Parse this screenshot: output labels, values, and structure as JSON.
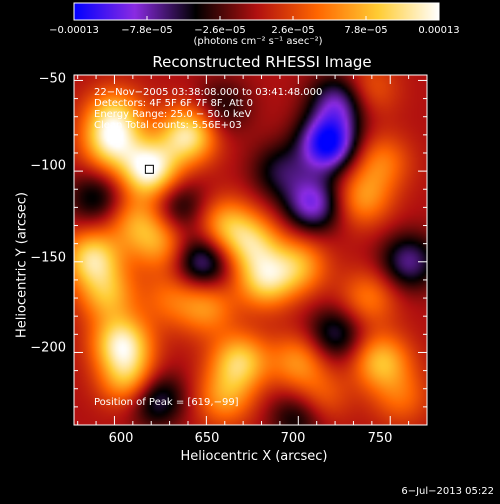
{
  "chart_data": {
    "type": "heatmap",
    "title": "Reconstructed RHESSI Image",
    "xlabel": "Heliocentric X (arcsec)",
    "ylabel": "Heliocentric Y (arcsec)",
    "xlim": [
      578,
      770
    ],
    "ylim": [
      -240,
      -47
    ],
    "x_ticks": [
      "600",
      "650",
      "700",
      "750"
    ],
    "x_tick_values": [
      600,
      650,
      700,
      750
    ],
    "y_ticks": [
      "−50",
      "−100",
      "−150",
      "−200"
    ],
    "y_tick_values": [
      -50,
      -100,
      -150,
      -200
    ],
    "colorbar": {
      "ticks": [
        "−0.00013",
        "−7.8e−05",
        "−2.6e−05",
        "2.6e−05",
        "7.8e−05",
        "0.00013"
      ],
      "tick_values": [
        -0.00013,
        -7.8e-05,
        -2.6e-05,
        2.6e-05,
        7.8e-05,
        0.00013
      ],
      "range": [
        -0.00013,
        0.00013
      ],
      "unit": "(photons cm⁻² s⁻¹ asec⁻²)",
      "colormap": [
        "#0000ff",
        "#8a2be2",
        "#000000",
        "#b01010",
        "#ff6600",
        "#ffcc33",
        "#ffffff"
      ]
    },
    "annotations": {
      "time_range": "22−Nov−2005 03:38:08.000 to 03:41:48.000",
      "detectors": "Detectors: 4F 5F 6F 7F 8F, Att 0",
      "energy": "Energy Range: 25.0 − 50.0 keV",
      "clean_counts": "Clean     Total counts: 5.56E+03",
      "peak": "Position of Peak = [619,−99]"
    },
    "sources": [
      {
        "x": 619,
        "y": -99,
        "value": 0.00013
      },
      {
        "x": 640,
        "y": -80,
        "value": 0.00011
      },
      {
        "x": 598,
        "y": -85,
        "value": 9e-05
      },
      {
        "x": 600,
        "y": -70,
        "value": 8e-05
      },
      {
        "x": 588,
        "y": -148,
        "value": 0.0001
      },
      {
        "x": 596,
        "y": -168,
        "value": 7e-05
      },
      {
        "x": 604,
        "y": -195,
        "value": 0.00011
      },
      {
        "x": 608,
        "y": -215,
        "value": 8e-05
      },
      {
        "x": 612,
        "y": -128,
        "value": 6e-05
      },
      {
        "x": 625,
        "y": -140,
        "value": 6e-05
      },
      {
        "x": 660,
        "y": -130,
        "value": 7e-05
      },
      {
        "x": 675,
        "y": -140,
        "value": 8e-05
      },
      {
        "x": 682,
        "y": -160,
        "value": 9e-05
      },
      {
        "x": 700,
        "y": -152,
        "value": 7e-05
      },
      {
        "x": 630,
        "y": -170,
        "value": 4e-05
      },
      {
        "x": 650,
        "y": -175,
        "value": 6e-05
      },
      {
        "x": 668,
        "y": -205,
        "value": 9e-05
      },
      {
        "x": 660,
        "y": -225,
        "value": 6e-05
      },
      {
        "x": 700,
        "y": -205,
        "value": 6e-05
      },
      {
        "x": 712,
        "y": -225,
        "value": 4e-05
      },
      {
        "x": 738,
        "y": -170,
        "value": 5e-05
      },
      {
        "x": 745,
        "y": -205,
        "value": 8e-05
      },
      {
        "x": 756,
        "y": -225,
        "value": 4e-05
      },
      {
        "x": 738,
        "y": -55,
        "value": 4e-05
      },
      {
        "x": 735,
        "y": -115,
        "value": 6e-05
      },
      {
        "x": 745,
        "y": -95,
        "value": 5e-05
      },
      {
        "x": 708,
        "y": -118,
        "value": -9e-05
      },
      {
        "x": 716,
        "y": -85,
        "value": -0.00013
      },
      {
        "x": 722,
        "y": -62,
        "value": -8e-05
      },
      {
        "x": 648,
        "y": -150,
        "value": -8e-05
      },
      {
        "x": 760,
        "y": -150,
        "value": -7e-05
      },
      {
        "x": 622,
        "y": -225,
        "value": -7e-05
      },
      {
        "x": 720,
        "y": -190,
        "value": -6e-05
      },
      {
        "x": 635,
        "y": -120,
        "value": -5e-05
      },
      {
        "x": 690,
        "y": -100,
        "value": -5e-05
      },
      {
        "x": 658,
        "y": -65,
        "value": -4e-05
      },
      {
        "x": 590,
        "y": -115,
        "value": -5e-05
      },
      {
        "x": 700,
        "y": -235,
        "value": -5e-05
      }
    ]
  },
  "footer": {
    "timestamp": "6−Jul−2013 05:22"
  }
}
